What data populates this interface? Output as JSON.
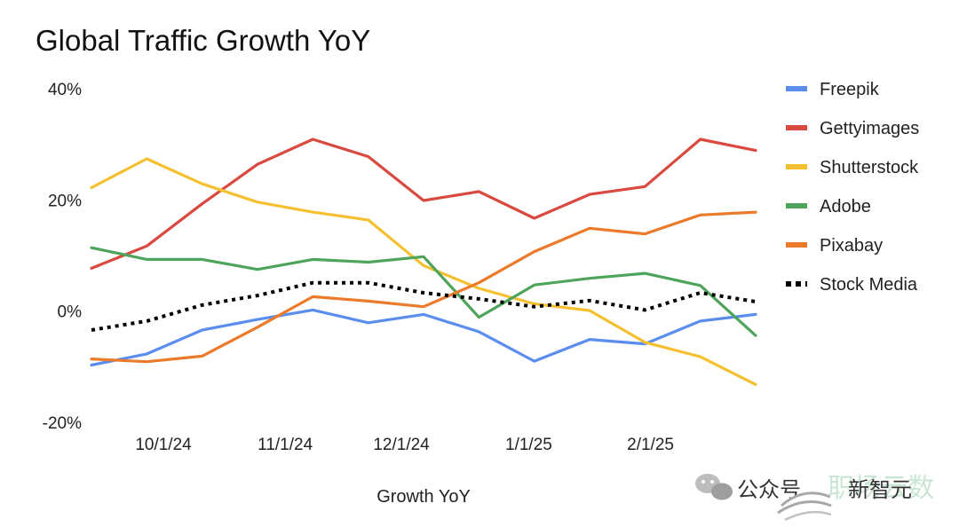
{
  "chart_data": {
    "type": "line",
    "title": "Global Traffic Growth YoY",
    "xlabel": "Growth YoY",
    "ylabel": "",
    "ylim": [
      -20,
      40
    ],
    "yticks": [
      {
        "value": 40,
        "label": "40%"
      },
      {
        "value": 20,
        "label": "20%"
      },
      {
        "value": 0,
        "label": "0%"
      },
      {
        "value": -20,
        "label": "-20%"
      }
    ],
    "x": [
      0,
      1,
      2,
      3,
      4,
      5,
      6,
      7,
      8,
      9,
      10,
      11,
      12
    ],
    "xlim": [
      0,
      12
    ],
    "xticks": [
      {
        "pos": 1.3,
        "label": "10/1/24"
      },
      {
        "pos": 3.5,
        "label": "11/1/24"
      },
      {
        "pos": 5.6,
        "label": "12/1/24"
      },
      {
        "pos": 7.9,
        "label": "1/1/25"
      },
      {
        "pos": 10.1,
        "label": "2/1/25"
      }
    ],
    "legend_position": "right",
    "series": [
      {
        "name": "Freepik",
        "color": "#5b8def",
        "style": "solid",
        "values": [
          -9.7,
          -7.7,
          -3.4,
          -1.5,
          0.2,
          -2.1,
          -0.6,
          -3.7,
          -9,
          -5.1,
          -5.9,
          -1.8,
          -0.6
        ]
      },
      {
        "name": "Gettyimages",
        "color": "#d9493f",
        "style": "solid",
        "values": [
          7.7,
          11.7,
          19.3,
          26.4,
          30.9,
          27.8,
          19.9,
          21.5,
          16.7,
          21,
          22.4,
          30.9,
          28.9
        ]
      },
      {
        "name": "Shutterstock",
        "color": "#f4c030",
        "style": "solid",
        "values": [
          22.2,
          27.4,
          22.9,
          19.6,
          17.8,
          16.4,
          8.2,
          4.1,
          1.3,
          0.1,
          -5.6,
          -8.2,
          -13.2
        ]
      },
      {
        "name": "Adobe",
        "color": "#4fa45c",
        "style": "solid",
        "values": [
          11.4,
          9.3,
          9.3,
          7.5,
          9.3,
          8.8,
          9.8,
          -1.1,
          4.7,
          5.9,
          6.8,
          4.6,
          -4.4
        ]
      },
      {
        "name": "Pixabay",
        "color": "#eb7b2b",
        "style": "solid",
        "values": [
          -8.6,
          -9.1,
          -8.1,
          -2.9,
          2.6,
          1.8,
          0.8,
          5.1,
          10.7,
          14.9,
          13.9,
          17.3,
          17.8
        ]
      },
      {
        "name": "Stock Media",
        "color": "#000000",
        "style": "dotted",
        "values": [
          -3.4,
          -1.8,
          1.1,
          2.8,
          5.1,
          5.1,
          3.3,
          2.2,
          0.8,
          1.9,
          0.2,
          3.3,
          1.7
        ]
      }
    ]
  },
  "watermark": {
    "wechat_label": "公众号",
    "brand_text": "新智元",
    "faint_text": "职场云数"
  }
}
